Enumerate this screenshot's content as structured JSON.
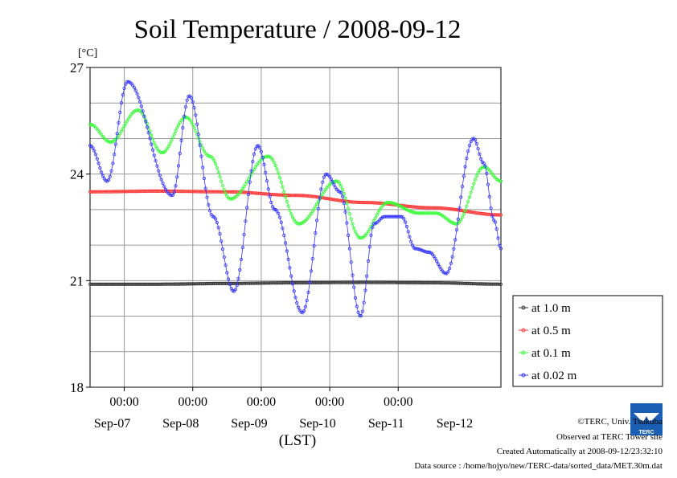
{
  "chart_data": {
    "type": "line",
    "title": "Soil Temperature / 2008-09-12",
    "ylabel": "[°C]",
    "xlabel": "(LST)",
    "ylim": [
      18,
      27
    ],
    "yticks": [
      18,
      21,
      24,
      27
    ],
    "xlim": [
      0,
      6
    ],
    "x_unit": "days from 2008-09-06 12:00 LST",
    "time_ticks": [
      {
        "x": 0.5,
        "label": "00:00"
      },
      {
        "x": 1.5,
        "label": "00:00"
      },
      {
        "x": 2.5,
        "label": "00:00"
      },
      {
        "x": 3.5,
        "label": "00:00"
      },
      {
        "x": 4.5,
        "label": "00:00"
      }
    ],
    "date_labels": [
      {
        "x": 0.5,
        "label": "Sep-07"
      },
      {
        "x": 1.5,
        "label": "Sep-08"
      },
      {
        "x": 2.5,
        "label": "Sep-09"
      },
      {
        "x": 3.5,
        "label": "Sep-10"
      },
      {
        "x": 4.5,
        "label": "Sep-11"
      },
      {
        "x": 5.5,
        "label": "Sep-12"
      }
    ],
    "grid": true,
    "legend_position": "right",
    "series": [
      {
        "name": "at 1.0 m",
        "color": "#333333",
        "x": [
          0,
          1,
          2,
          3,
          4,
          5,
          6
        ],
        "y": [
          20.9,
          20.9,
          20.92,
          20.94,
          20.95,
          20.94,
          20.9
        ]
      },
      {
        "name": "at 0.5 m",
        "color": "#ff3333",
        "x": [
          0,
          1,
          2,
          3,
          4,
          5,
          6
        ],
        "y": [
          23.5,
          23.52,
          23.5,
          23.4,
          23.2,
          23.05,
          22.85
        ]
      },
      {
        "name": "at 0.1 m",
        "color": "#33ff33",
        "x": [
          0,
          0.3,
          0.7,
          1.05,
          1.4,
          1.75,
          2.05,
          2.6,
          3.05,
          3.6,
          3.95,
          4.35,
          4.8,
          5.05,
          5.35,
          5.75,
          6.0
        ],
        "y": [
          25.4,
          24.9,
          25.8,
          24.6,
          25.6,
          24.5,
          23.3,
          24.5,
          22.6,
          23.8,
          22.2,
          23.2,
          22.9,
          22.9,
          22.6,
          24.2,
          23.8
        ]
      },
      {
        "name": "at 0.02 m",
        "color": "#3333ff",
        "x": [
          0,
          0.25,
          0.55,
          1.2,
          1.45,
          1.8,
          2.1,
          2.45,
          2.7,
          3.1,
          3.45,
          3.65,
          3.95,
          4.15,
          4.3,
          4.55,
          4.75,
          4.95,
          5.2,
          5.6,
          5.75,
          5.9,
          6.0
        ],
        "y": [
          24.8,
          23.8,
          26.6,
          23.4,
          26.2,
          22.8,
          20.7,
          24.8,
          23.0,
          20.1,
          24.0,
          23.5,
          20.0,
          22.6,
          22.8,
          22.8,
          21.9,
          21.8,
          21.2,
          25.0,
          24.3,
          22.7,
          21.9
        ]
      }
    ]
  },
  "credits": {
    "copyright": "©TERC, Univ. Tsukuba",
    "observed": "Observed at TERC Tower site",
    "created": "Created Automatically at 2008-09-12/23:32:10",
    "source": "Data source : /home/hojyo/new/TERC-data/sorted_data/MET.30m.dat"
  },
  "logo": {
    "text": "TERC",
    "color": "#1a5fb4"
  }
}
